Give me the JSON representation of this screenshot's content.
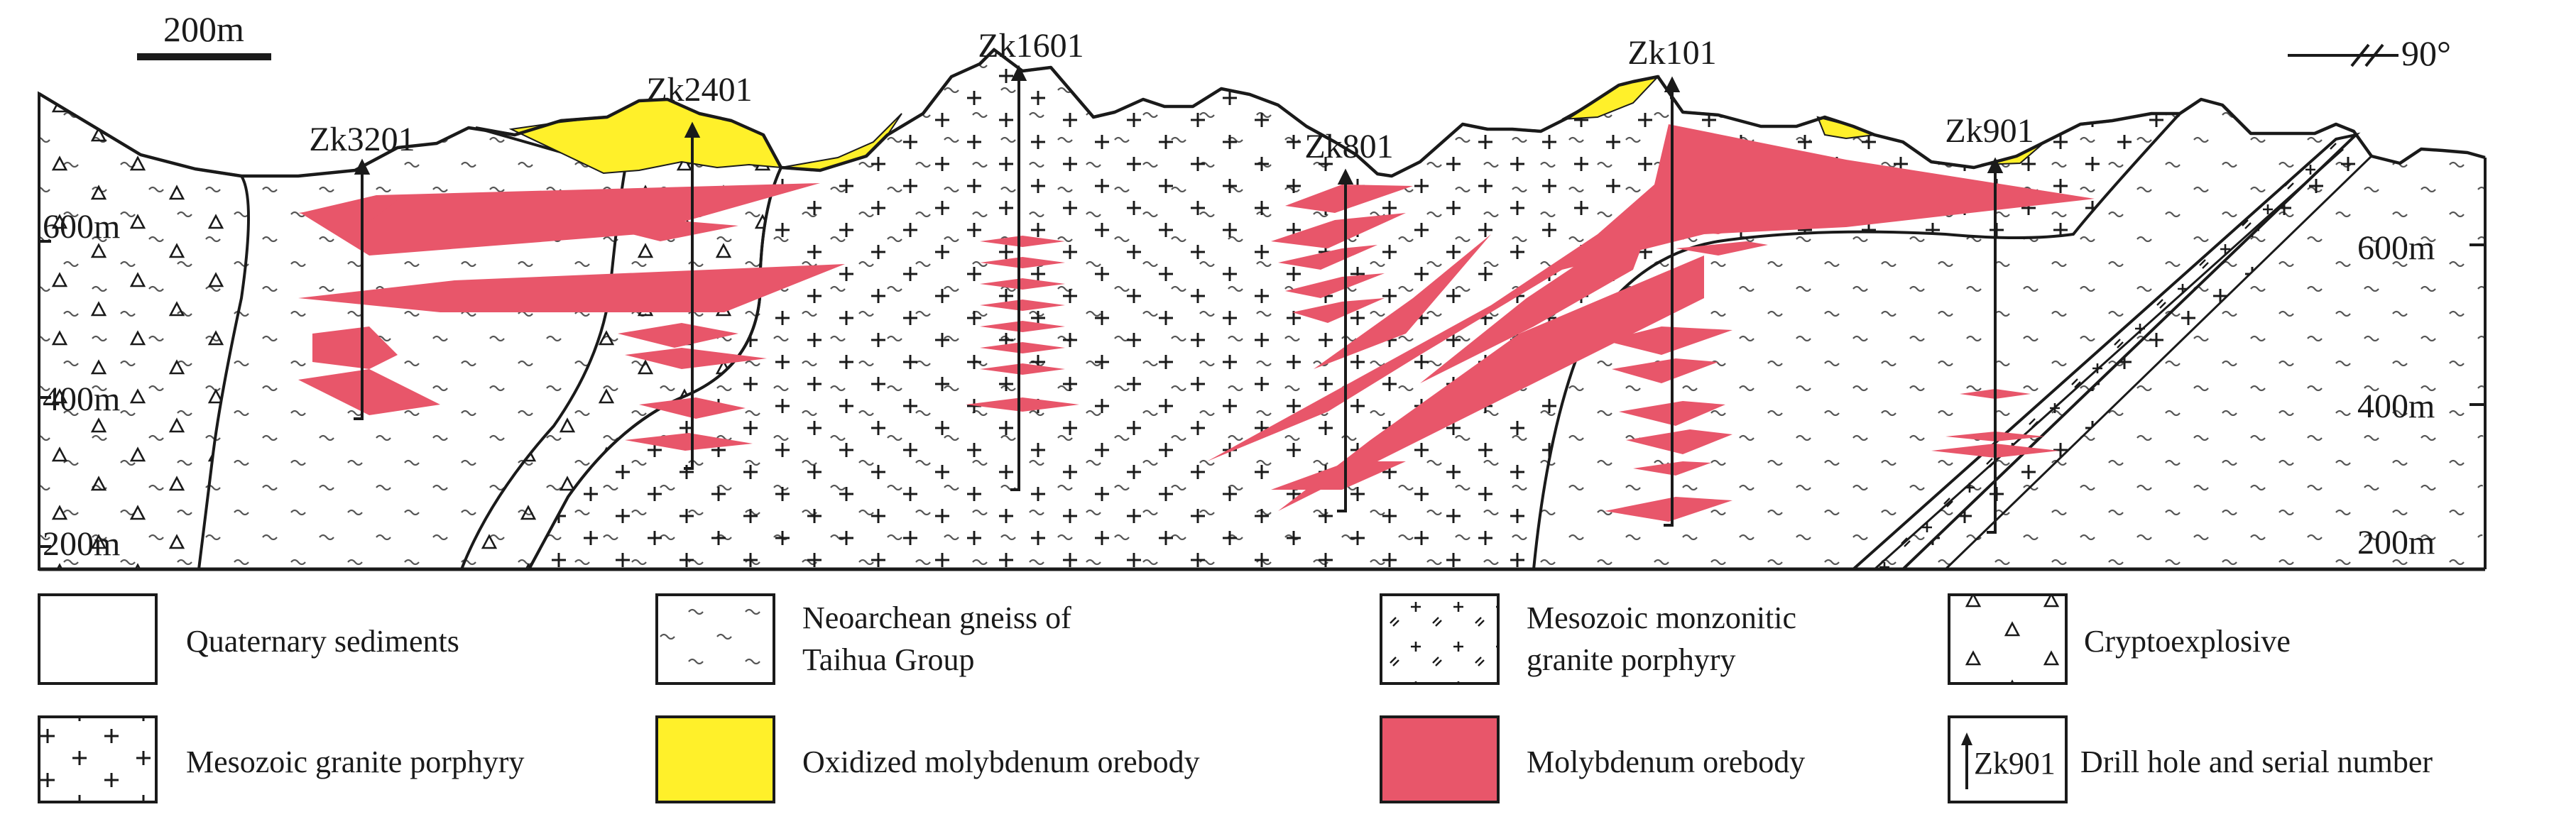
{
  "scale_bar": {
    "label": "200m"
  },
  "orientation": {
    "label": "90°"
  },
  "drill_holes": [
    {
      "name": "Zk3201"
    },
    {
      "name": "Zk2401"
    },
    {
      "name": "Zk1601"
    },
    {
      "name": "Zk801"
    },
    {
      "name": "Zk101"
    },
    {
      "name": "Zk901"
    }
  ],
  "elevation_labels": {
    "left": [
      "600m",
      "400m",
      "200m"
    ],
    "right": [
      "600m",
      "400m",
      "200m"
    ]
  },
  "legend": {
    "quaternary": "Quaternary sediments",
    "gneiss_line1": "Neoarchean gneiss of",
    "gneiss_line2": "Taihua Group",
    "monzonitic_line1": "Mesozoic monzonitic",
    "monzonitic_line2": "granite porphyry",
    "cryptoexplosive": "Cryptoexplosive",
    "granite_porphyry": "Mesozoic granite porphyry",
    "oxidized_orebody": "Oxidized molybdenum orebody",
    "orebody": "Molybdenum orebody",
    "drill_hole_sample": "Zk901",
    "drill_hole": "Drill hole and serial number"
  },
  "colors": {
    "orebody": "#E8566A",
    "oxidized": "#FFF02A",
    "outline": "#1a1a1a"
  }
}
